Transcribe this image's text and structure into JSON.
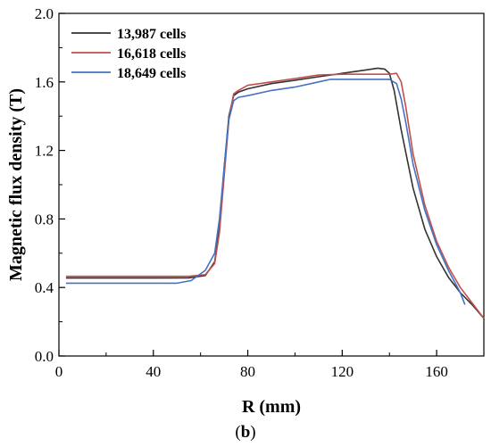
{
  "chart_data": {
    "type": "line",
    "title": "",
    "xlabel": "R (mm)",
    "ylabel": "Magnetic flux density (T)",
    "xlim": [
      0,
      180
    ],
    "ylim": [
      0.0,
      2.0
    ],
    "xticks": [
      0,
      40,
      80,
      120,
      160
    ],
    "yticks": [
      0.0,
      0.4,
      0.8,
      1.2,
      1.6,
      2.0
    ],
    "ytick_labels": [
      "0.0",
      "0.4",
      "0.8",
      "1.2",
      "1.6",
      "2.0"
    ],
    "grid": false,
    "legend_position": "top-left",
    "series": [
      {
        "name": "13,987 cells",
        "color": "#333333",
        "x": [
          3,
          20,
          40,
          55,
          62,
          66,
          68,
          70,
          72,
          74,
          76,
          80,
          90,
          100,
          110,
          120,
          130,
          135,
          138,
          140,
          142,
          145,
          150,
          155,
          160,
          165,
          170,
          175,
          180
        ],
        "y": [
          0.455,
          0.455,
          0.455,
          0.456,
          0.47,
          0.55,
          0.75,
          1.1,
          1.4,
          1.52,
          1.54,
          1.56,
          1.59,
          1.61,
          1.63,
          1.65,
          1.67,
          1.68,
          1.675,
          1.65,
          1.55,
          1.32,
          0.98,
          0.74,
          0.58,
          0.46,
          0.37,
          0.3,
          0.22
        ]
      },
      {
        "name": "16,618 cells",
        "color": "#c0504d",
        "x": [
          3,
          20,
          40,
          55,
          62,
          66,
          68,
          70,
          72,
          74,
          76,
          80,
          90,
          100,
          110,
          120,
          130,
          140,
          143,
          145,
          147,
          150,
          155,
          160,
          165,
          170,
          175,
          180
        ],
        "y": [
          0.465,
          0.465,
          0.465,
          0.465,
          0.475,
          0.54,
          0.72,
          1.05,
          1.38,
          1.53,
          1.55,
          1.58,
          1.6,
          1.62,
          1.64,
          1.645,
          1.645,
          1.645,
          1.65,
          1.6,
          1.45,
          1.18,
          0.88,
          0.67,
          0.52,
          0.4,
          0.31,
          0.22
        ]
      },
      {
        "name": "18,649 cells",
        "color": "#4472c4",
        "x": [
          3,
          20,
          40,
          50,
          56,
          62,
          66,
          68,
          70,
          72,
          74,
          76,
          80,
          90,
          100,
          110,
          115,
          120,
          130,
          140,
          143,
          145,
          147,
          150,
          155,
          160,
          165,
          170,
          172
        ],
        "y": [
          0.425,
          0.425,
          0.425,
          0.425,
          0.44,
          0.5,
          0.6,
          0.8,
          1.1,
          1.38,
          1.49,
          1.51,
          1.52,
          1.55,
          1.57,
          1.6,
          1.615,
          1.615,
          1.615,
          1.615,
          1.59,
          1.5,
          1.36,
          1.12,
          0.85,
          0.65,
          0.5,
          0.37,
          0.3
        ]
      }
    ]
  },
  "caption": {
    "open": "(",
    "label": "b",
    "close": ")"
  }
}
